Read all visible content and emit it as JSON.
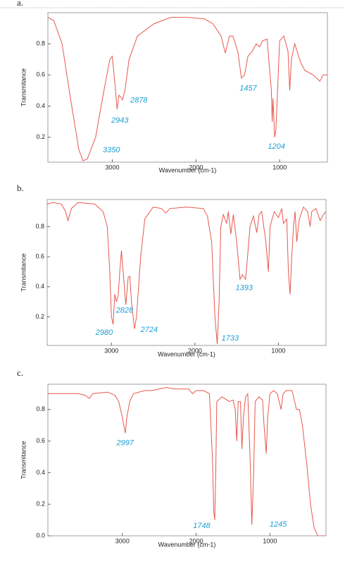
{
  "chart_data": [
    {
      "type": "line",
      "panel_label": "a.",
      "x_label": "Wavenumber (cm-1)",
      "y_label": "Transmitance",
      "color": "#e8574e",
      "xlim": [
        3770,
        430
      ],
      "ylim": [
        0.04,
        1.0
      ],
      "xticks": [
        3000,
        2000,
        1000
      ],
      "yticks": [
        0.2,
        0.4,
        0.6,
        0.8
      ],
      "x": [
        3770,
        3700,
        3600,
        3500,
        3400,
        3350,
        3300,
        3200,
        3100,
        3030,
        3000,
        2970,
        2943,
        2920,
        2900,
        2878,
        2850,
        2800,
        2700,
        2500,
        2300,
        2100,
        1900,
        1800,
        1700,
        1650,
        1600,
        1560,
        1500,
        1457,
        1420,
        1380,
        1330,
        1280,
        1240,
        1204,
        1150,
        1100,
        1090,
        1080,
        1060,
        1045,
        1000,
        950,
        900,
        880,
        860,
        820,
        750,
        700,
        600,
        520,
        480,
        430
      ],
      "values": [
        0.97,
        0.95,
        0.8,
        0.45,
        0.12,
        0.05,
        0.06,
        0.2,
        0.5,
        0.7,
        0.72,
        0.55,
        0.38,
        0.47,
        0.46,
        0.44,
        0.5,
        0.7,
        0.85,
        0.93,
        0.97,
        0.97,
        0.96,
        0.93,
        0.85,
        0.74,
        0.85,
        0.85,
        0.75,
        0.58,
        0.6,
        0.72,
        0.75,
        0.8,
        0.78,
        0.82,
        0.83,
        0.5,
        0.3,
        0.45,
        0.2,
        0.25,
        0.82,
        0.85,
        0.75,
        0.5,
        0.7,
        0.8,
        0.68,
        0.63,
        0.6,
        0.56,
        0.6,
        0.6
      ],
      "annotations": [
        {
          "text": "3350",
          "x": 3011,
          "y": 0.117
        },
        {
          "text": "2943",
          "x": 2910,
          "y": 0.306
        },
        {
          "text": "2878",
          "x": 2683,
          "y": 0.436
        },
        {
          "text": "1457",
          "x": 1376,
          "y": 0.513
        },
        {
          "text": "1204",
          "x": 1039,
          "y": 0.139
        }
      ]
    },
    {
      "type": "line",
      "panel_label": "b.",
      "x_label": "Wavenumber (cm-1)",
      "y_label": "Transmitance",
      "color": "#e8574e",
      "xlim": [
        3770,
        430
      ],
      "ylim": [
        0.01,
        0.98
      ],
      "xticks": [
        3000,
        2000,
        1000
      ],
      "yticks": [
        0.2,
        0.4,
        0.6,
        0.8
      ],
      "x": [
        3770,
        3700,
        3600,
        3550,
        3520,
        3480,
        3400,
        3200,
        3100,
        3050,
        3020,
        3000,
        2980,
        2960,
        2940,
        2920,
        2900,
        2880,
        2860,
        2828,
        2800,
        2780,
        2760,
        2724,
        2700,
        2650,
        2600,
        2500,
        2400,
        2350,
        2300,
        2100,
        1900,
        1850,
        1800,
        1760,
        1733,
        1710,
        1690,
        1660,
        1620,
        1600,
        1570,
        1540,
        1500,
        1460,
        1430,
        1393,
        1370,
        1340,
        1300,
        1260,
        1230,
        1200,
        1150,
        1120,
        1100,
        1050,
        1000,
        960,
        940,
        900,
        880,
        860,
        840,
        820,
        800,
        780,
        750,
        700,
        650,
        620,
        600,
        550,
        500,
        460,
        430
      ],
      "values": [
        0.95,
        0.96,
        0.95,
        0.9,
        0.84,
        0.92,
        0.96,
        0.95,
        0.9,
        0.8,
        0.5,
        0.2,
        0.15,
        0.35,
        0.3,
        0.34,
        0.5,
        0.64,
        0.5,
        0.28,
        0.46,
        0.47,
        0.3,
        0.12,
        0.2,
        0.6,
        0.85,
        0.93,
        0.92,
        0.89,
        0.92,
        0.93,
        0.92,
        0.87,
        0.7,
        0.2,
        0.02,
        0.3,
        0.8,
        0.88,
        0.82,
        0.9,
        0.75,
        0.88,
        0.7,
        0.45,
        0.48,
        0.45,
        0.6,
        0.8,
        0.87,
        0.76,
        0.88,
        0.9,
        0.7,
        0.5,
        0.8,
        0.9,
        0.86,
        0.92,
        0.82,
        0.85,
        0.5,
        0.35,
        0.6,
        0.8,
        0.9,
        0.7,
        0.85,
        0.93,
        0.9,
        0.8,
        0.9,
        0.92,
        0.84,
        0.88,
        0.9
      ],
      "annotations": [
        {
          "text": "2980",
          "x": 3087,
          "y": 0.093
        },
        {
          "text": "2828",
          "x": 2843,
          "y": 0.242
        },
        {
          "text": "2724",
          "x": 2548,
          "y": 0.112
        },
        {
          "text": "1733",
          "x": 1578,
          "y": 0.056
        },
        {
          "text": "1393",
          "x": 1410,
          "y": 0.391
        }
      ]
    },
    {
      "type": "line",
      "panel_label": "c.",
      "x_label": "Wavenumber (cm-1)",
      "y_label": "Transmitance",
      "color": "#e8574e",
      "xlim": [
        4010,
        240
      ],
      "ylim": [
        0,
        0.96
      ],
      "xticks": [
        3000,
        2000,
        1000
      ],
      "yticks": [
        {
          "value": 0,
          "label": "0.0"
        },
        0.2,
        0.4,
        0.6,
        0.8
      ],
      "x": [
        4010,
        3800,
        3600,
        3500,
        3450,
        3400,
        3200,
        3100,
        3050,
        3000,
        2980,
        2960,
        2940,
        2900,
        2850,
        2700,
        2600,
        2500,
        2400,
        2300,
        2200,
        2100,
        2050,
        2000,
        1900,
        1820,
        1780,
        1760,
        1748,
        1735,
        1720,
        1650,
        1550,
        1500,
        1470,
        1450,
        1430,
        1400,
        1380,
        1360,
        1330,
        1300,
        1270,
        1245,
        1220,
        1200,
        1150,
        1100,
        1080,
        1050,
        1030,
        1000,
        950,
        900,
        850,
        820,
        780,
        700,
        640,
        600,
        560,
        500,
        450,
        400,
        350,
        240
      ],
      "values": [
        0.9,
        0.9,
        0.9,
        0.89,
        0.87,
        0.9,
        0.91,
        0.89,
        0.85,
        0.75,
        0.7,
        0.65,
        0.75,
        0.85,
        0.9,
        0.92,
        0.92,
        0.93,
        0.94,
        0.93,
        0.93,
        0.93,
        0.9,
        0.92,
        0.92,
        0.9,
        0.5,
        0.15,
        0.1,
        0.4,
        0.85,
        0.88,
        0.85,
        0.86,
        0.8,
        0.6,
        0.85,
        0.85,
        0.55,
        0.75,
        0.88,
        0.9,
        0.5,
        0.07,
        0.4,
        0.85,
        0.88,
        0.86,
        0.7,
        0.52,
        0.75,
        0.9,
        0.92,
        0.9,
        0.8,
        0.9,
        0.92,
        0.92,
        0.8,
        0.8,
        0.7,
        0.45,
        0.2,
        0.05,
        0.0,
        0.0
      ],
      "annotations": [
        {
          "text": "2997",
          "x": 2963,
          "y": 0.587
        },
        {
          "text": "1748",
          "x": 1925,
          "y": 0.062
        },
        {
          "text": "1245",
          "x": 888,
          "y": 0.071
        }
      ]
    }
  ]
}
